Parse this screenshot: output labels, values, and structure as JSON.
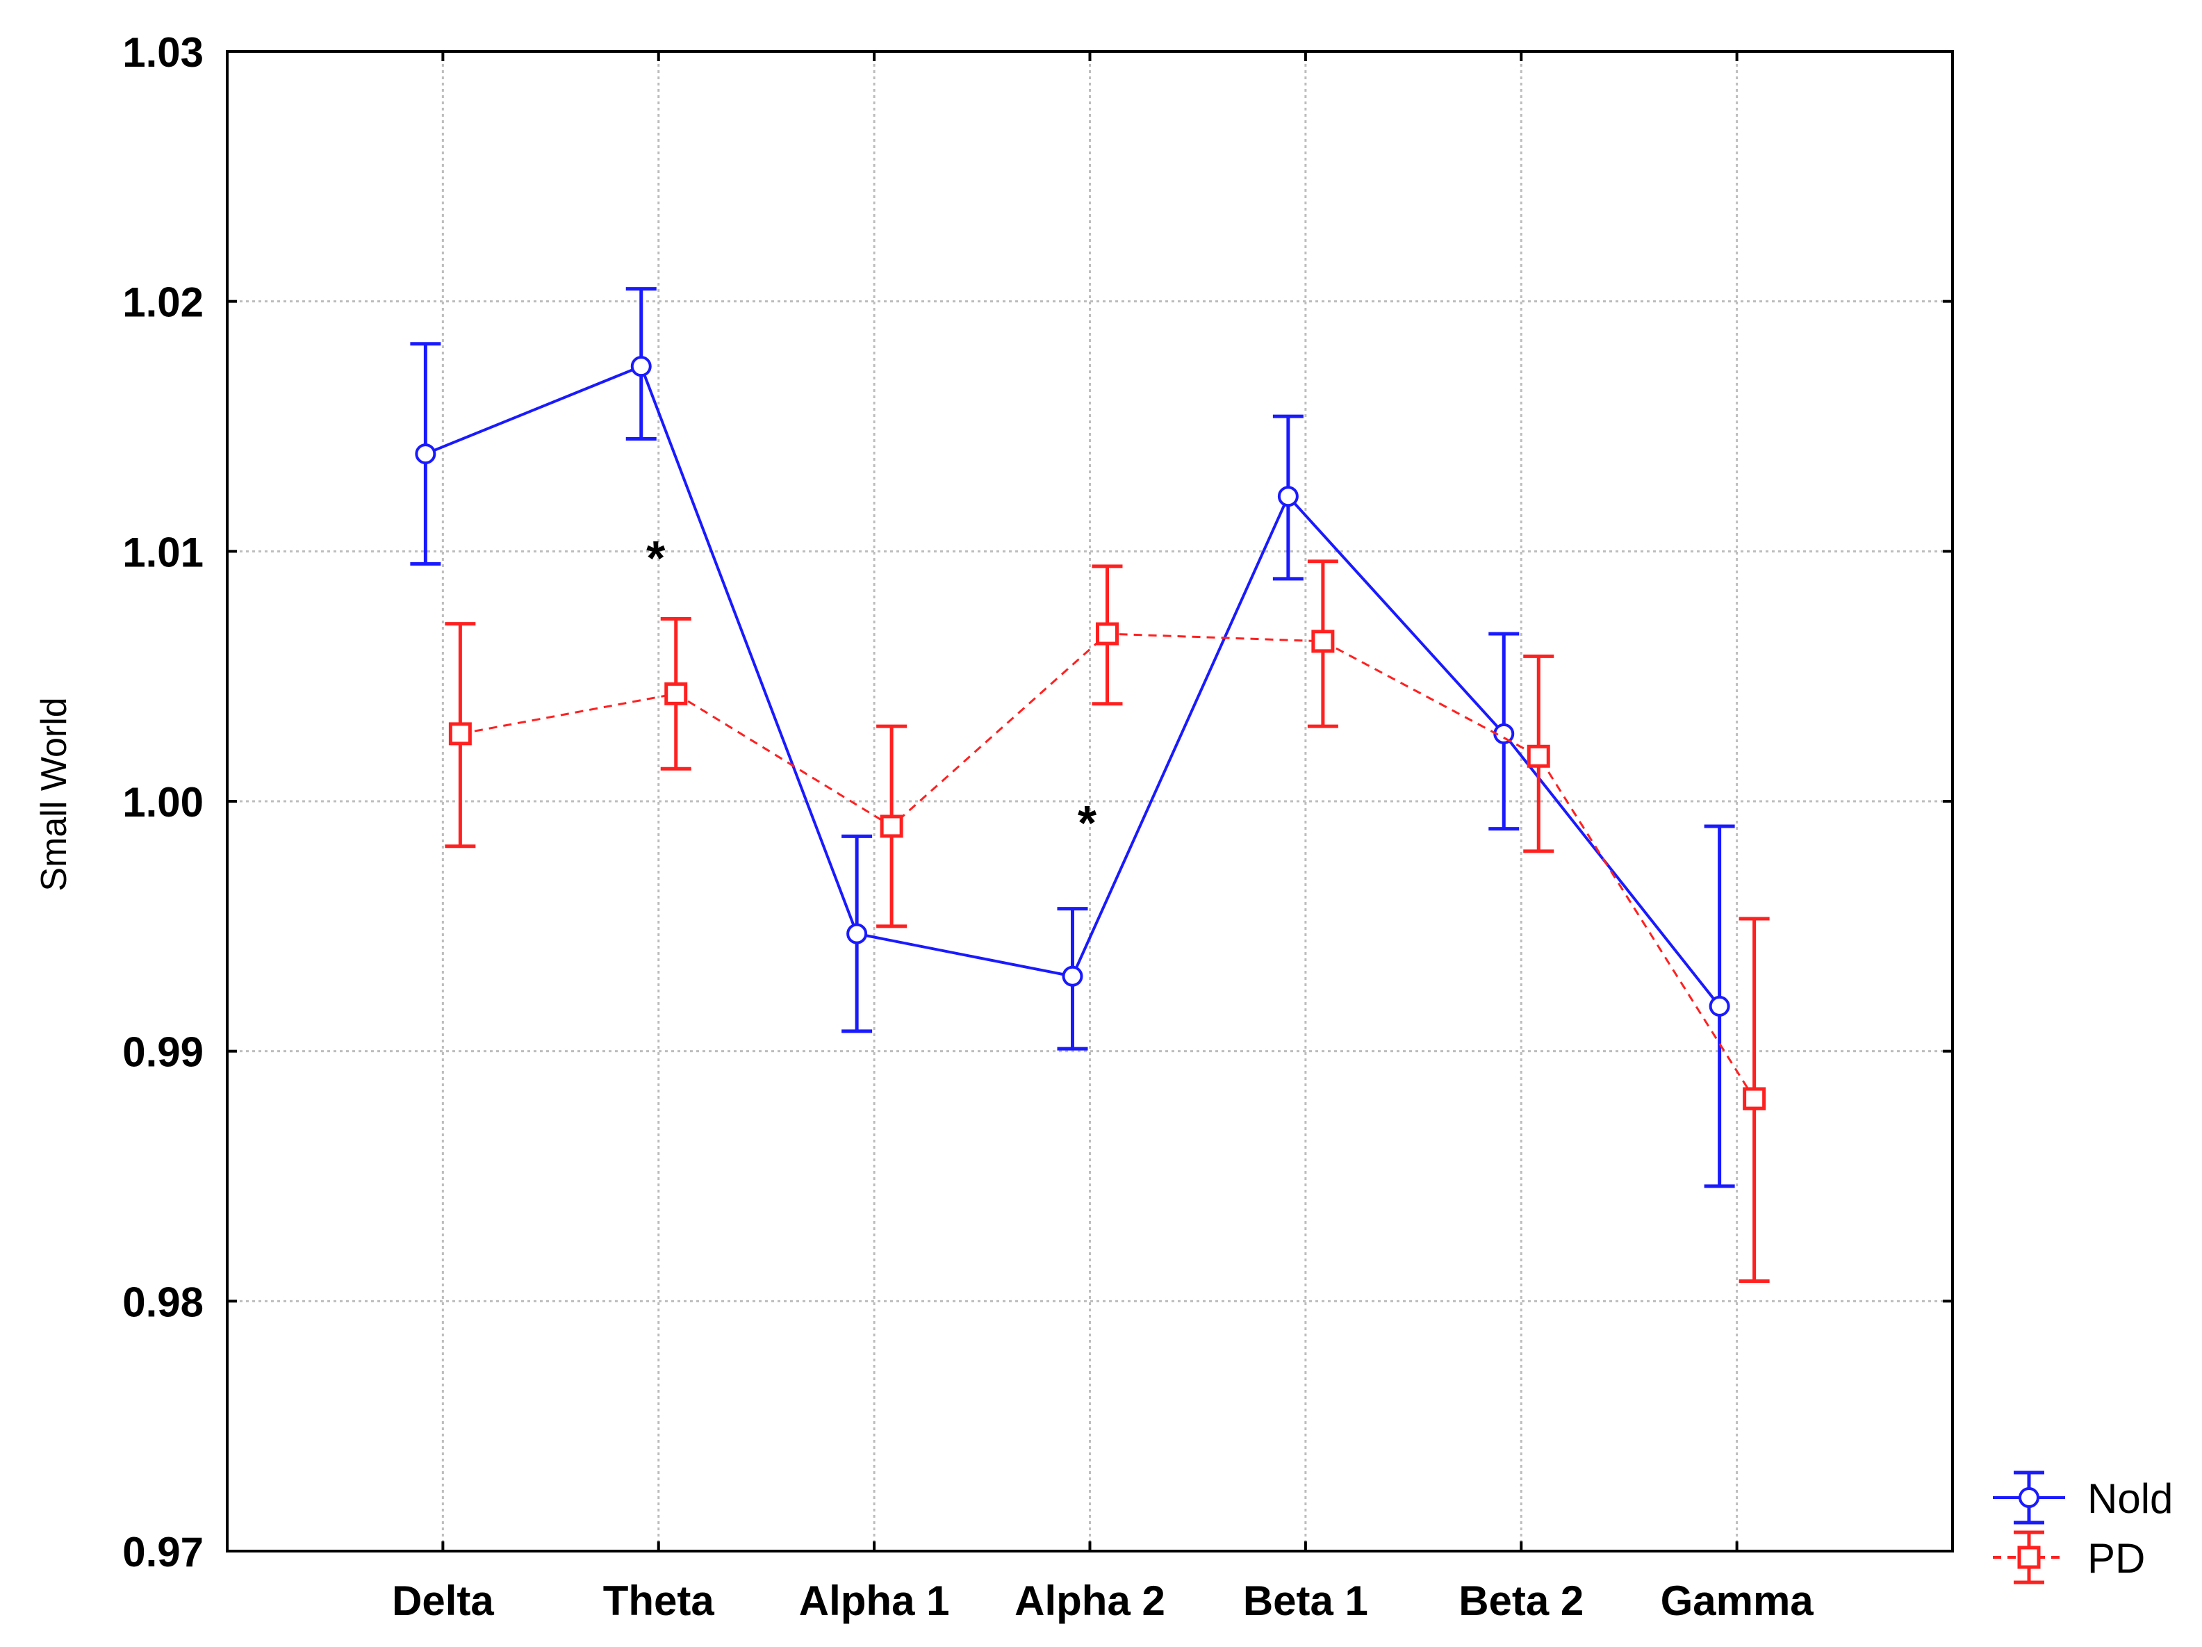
{
  "chart_data": {
    "type": "line",
    "ylabel": "Small World",
    "ylim": [
      0.97,
      1.03
    ],
    "yticks": [
      "0.97",
      "0.98",
      "0.99",
      "1.00",
      "1.01",
      "1.02",
      "1.03"
    ],
    "grid": true,
    "legend_position": "bottom-right outside",
    "categories": [
      "Delta",
      "Theta",
      "Alpha 1",
      "Alpha 2",
      "Beta 1",
      "Beta 2",
      "Gamma"
    ],
    "series": [
      {
        "name": "Nold",
        "color": "#1a1aff",
        "line_style": "solid",
        "marker": "circle",
        "values": [
          1.0139,
          1.0174,
          0.9947,
          0.993,
          1.0122,
          1.0027,
          0.9918
        ],
        "error_low": [
          1.0095,
          1.0145,
          0.9908,
          0.9901,
          1.0089,
          0.9989,
          0.9846
        ],
        "error_high": [
          1.0183,
          1.0205,
          0.9986,
          0.9957,
          1.0154,
          1.0067,
          0.999
        ]
      },
      {
        "name": "PD",
        "color": "#ff2020",
        "line_style": "dashed",
        "marker": "square",
        "values": [
          1.0027,
          1.0043,
          0.999,
          1.0067,
          1.0064,
          1.0018,
          0.9881
        ],
        "error_low": [
          0.9982,
          1.0013,
          0.995,
          1.0039,
          1.003,
          0.998,
          0.9808
        ],
        "error_high": [
          1.0071,
          1.0073,
          1.003,
          1.0094,
          1.0096,
          1.0058,
          0.9953
        ]
      }
    ],
    "annotations": [
      {
        "text": "*",
        "category": "Theta",
        "y": 1.0099
      },
      {
        "text": "*",
        "category": "Alpha 2",
        "y": 0.9993
      }
    ]
  }
}
